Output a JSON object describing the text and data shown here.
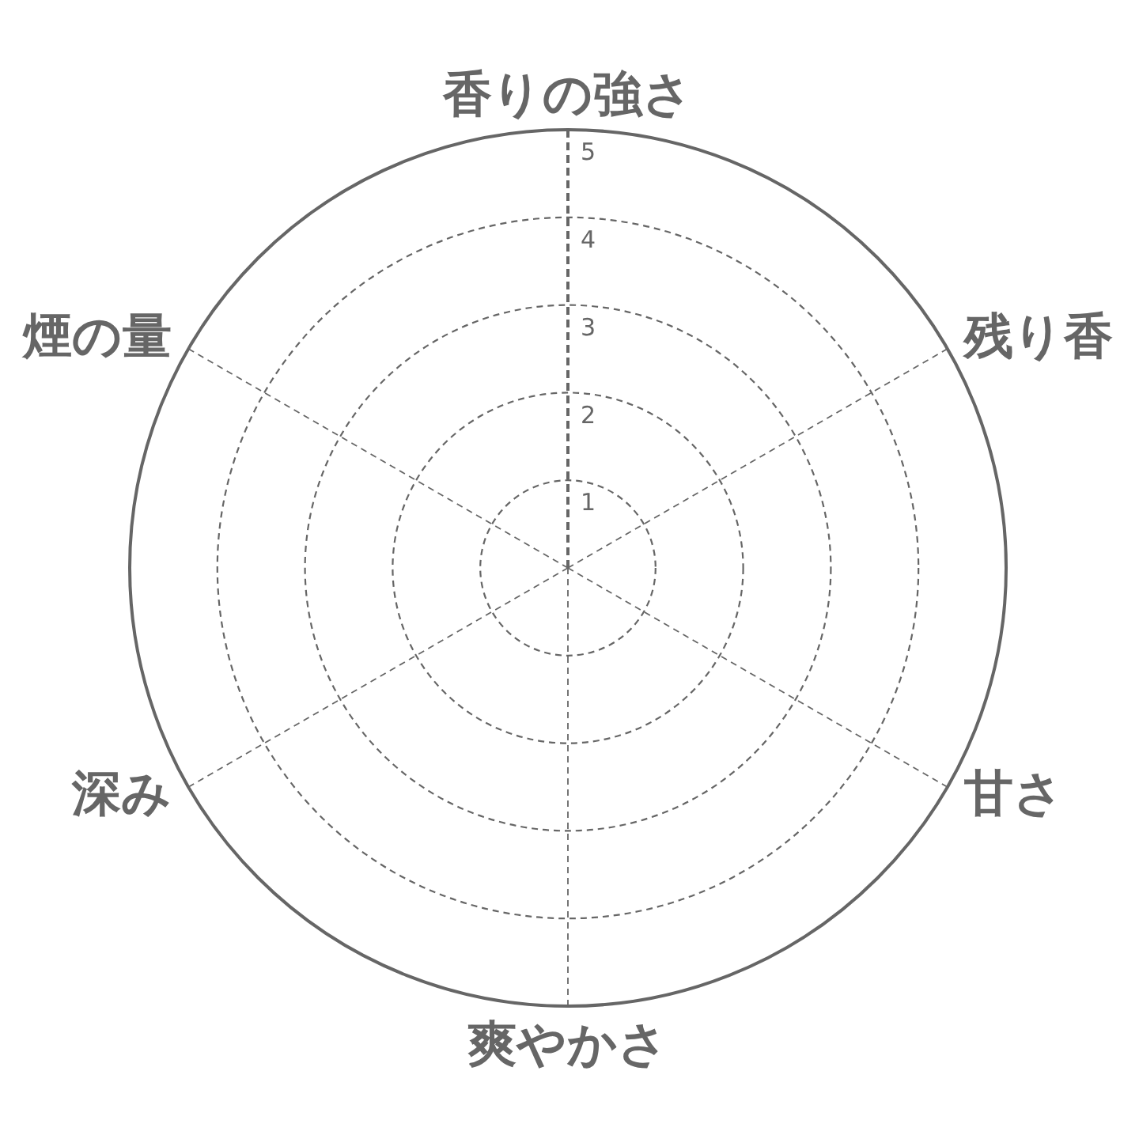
{
  "chart_data": {
    "type": "radar",
    "categories": [
      "香りの強さ",
      "残り香",
      "甘さ",
      "爽やかさ",
      "深み",
      "煙の量"
    ],
    "ylim": [
      0,
      5
    ],
    "yticks": [
      1,
      2,
      3,
      4,
      5
    ],
    "grid": true
  }
}
